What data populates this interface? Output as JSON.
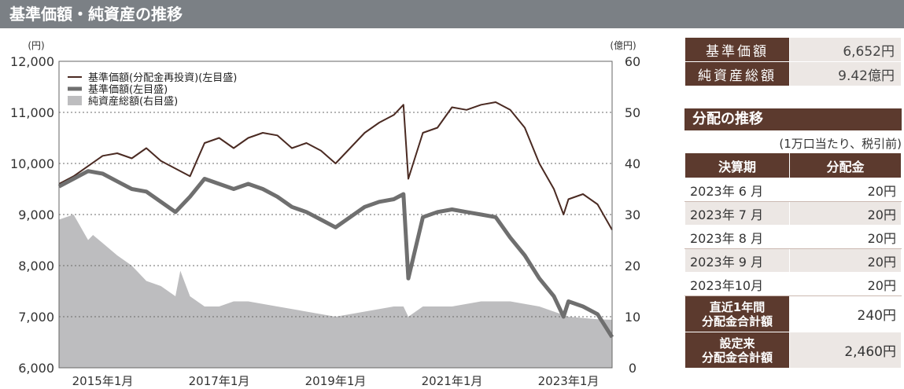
{
  "header": {
    "title": "基準価額・純資産の推移"
  },
  "summary": [
    {
      "label": "基準価額",
      "value": "6,652円"
    },
    {
      "label": "純資産総額",
      "value": "9.42億円"
    }
  ],
  "distribution": {
    "title": "分配の推移",
    "note": "(1万口当たり、税引前)",
    "col_period": "決算期",
    "col_amount": "分配金",
    "rows": [
      {
        "period": "2023年 6 月",
        "amount": "20円"
      },
      {
        "period": "2023年 7 月",
        "amount": "20円"
      },
      {
        "period": "2023年 8 月",
        "amount": "20円"
      },
      {
        "period": "2023年 9 月",
        "amount": "20円"
      },
      {
        "period": "2023年10月",
        "amount": "20円"
      }
    ],
    "recent_total_label": "直近1年間\n分配金合計額",
    "recent_total_value": "240円",
    "since_total_label": "設定来\n分配金合計額",
    "since_total_value": "2,460円"
  },
  "colors": {
    "reinvested_line": "#4a2a22",
    "nav_line": "#6f6f6f",
    "net_assets_area": "#bdbdbf",
    "header_bg": "#7b8085",
    "table_header": "#5c3a2e"
  },
  "chart_data": {
    "type": "line",
    "title": "",
    "left_axis_unit": "(円)",
    "right_axis_unit": "(億円)",
    "y_left_range": [
      6000,
      12000
    ],
    "y_right_range": [
      0,
      60
    ],
    "y_left_ticks": [
      "6,000",
      "7,000",
      "8,000",
      "9,000",
      "10,000",
      "11,000",
      "12,000"
    ],
    "y_right_ticks": [
      "0",
      "10",
      "20",
      "30",
      "40",
      "50",
      "60"
    ],
    "x_range": [
      "2014-04",
      "2023-10"
    ],
    "x_ticks": [
      {
        "date": "2015-01",
        "label": "2015年1月"
      },
      {
        "date": "2017-01",
        "label": "2017年1月"
      },
      {
        "date": "2019-01",
        "label": "2019年1月"
      },
      {
        "date": "2021-01",
        "label": "2021年1月"
      },
      {
        "date": "2023-01",
        "label": "2023年1月"
      }
    ],
    "grid": true,
    "legend_position": "top-left",
    "series": [
      {
        "name": "基準価額(分配金再投資)(左目盛)",
        "axis": "left",
        "style": "line",
        "points": [
          [
            "2014-04",
            9600
          ],
          [
            "2014-07",
            9750
          ],
          [
            "2014-10",
            9950
          ],
          [
            "2015-01",
            10150
          ],
          [
            "2015-04",
            10200
          ],
          [
            "2015-07",
            10100
          ],
          [
            "2015-10",
            10300
          ],
          [
            "2016-01",
            10050
          ],
          [
            "2016-04",
            9900
          ],
          [
            "2016-07",
            9750
          ],
          [
            "2016-10",
            10400
          ],
          [
            "2017-01",
            10500
          ],
          [
            "2017-04",
            10300
          ],
          [
            "2017-07",
            10500
          ],
          [
            "2017-10",
            10600
          ],
          [
            "2018-01",
            10550
          ],
          [
            "2018-04",
            10300
          ],
          [
            "2018-07",
            10400
          ],
          [
            "2018-10",
            10250
          ],
          [
            "2019-01",
            10000
          ],
          [
            "2019-04",
            10300
          ],
          [
            "2019-07",
            10600
          ],
          [
            "2019-10",
            10800
          ],
          [
            "2020-01",
            10950
          ],
          [
            "2020-03",
            11150
          ],
          [
            "2020-04",
            9700
          ],
          [
            "2020-07",
            10600
          ],
          [
            "2020-10",
            10700
          ],
          [
            "2021-01",
            11100
          ],
          [
            "2021-04",
            11050
          ],
          [
            "2021-07",
            11150
          ],
          [
            "2021-10",
            11200
          ],
          [
            "2022-01",
            11050
          ],
          [
            "2022-04",
            10700
          ],
          [
            "2022-07",
            10000
          ],
          [
            "2022-10",
            9500
          ],
          [
            "2022-12",
            9000
          ],
          [
            "2023-01",
            9300
          ],
          [
            "2023-04",
            9400
          ],
          [
            "2023-07",
            9200
          ],
          [
            "2023-10",
            8700
          ]
        ]
      },
      {
        "name": "基準価額(左目盛)",
        "axis": "left",
        "style": "line",
        "points": [
          [
            "2014-04",
            9550
          ],
          [
            "2014-07",
            9700
          ],
          [
            "2014-10",
            9850
          ],
          [
            "2015-01",
            9800
          ],
          [
            "2015-04",
            9650
          ],
          [
            "2015-07",
            9500
          ],
          [
            "2015-10",
            9450
          ],
          [
            "2016-01",
            9250
          ],
          [
            "2016-04",
            9050
          ],
          [
            "2016-07",
            9350
          ],
          [
            "2016-10",
            9700
          ],
          [
            "2017-01",
            9600
          ],
          [
            "2017-04",
            9500
          ],
          [
            "2017-07",
            9600
          ],
          [
            "2017-10",
            9500
          ],
          [
            "2018-01",
            9350
          ],
          [
            "2018-04",
            9150
          ],
          [
            "2018-07",
            9050
          ],
          [
            "2018-10",
            8900
          ],
          [
            "2019-01",
            8750
          ],
          [
            "2019-04",
            8950
          ],
          [
            "2019-07",
            9150
          ],
          [
            "2019-10",
            9250
          ],
          [
            "2020-01",
            9300
          ],
          [
            "2020-03",
            9400
          ],
          [
            "2020-04",
            7750
          ],
          [
            "2020-07",
            8950
          ],
          [
            "2020-10",
            9050
          ],
          [
            "2021-01",
            9100
          ],
          [
            "2021-04",
            9050
          ],
          [
            "2021-07",
            9000
          ],
          [
            "2021-10",
            8950
          ],
          [
            "2022-01",
            8550
          ],
          [
            "2022-04",
            8200
          ],
          [
            "2022-07",
            7750
          ],
          [
            "2022-10",
            7400
          ],
          [
            "2022-12",
            7000
          ],
          [
            "2023-01",
            7300
          ],
          [
            "2023-04",
            7200
          ],
          [
            "2023-07",
            7050
          ],
          [
            "2023-10",
            6600
          ]
        ]
      },
      {
        "name": "純資産総額(右目盛)",
        "axis": "right",
        "style": "area",
        "points": [
          [
            "2014-04",
            29
          ],
          [
            "2014-07",
            30
          ],
          [
            "2014-10",
            25
          ],
          [
            "2014-11",
            26
          ],
          [
            "2015-04",
            22
          ],
          [
            "2015-07",
            20
          ],
          [
            "2015-10",
            17
          ],
          [
            "2016-01",
            16
          ],
          [
            "2016-04",
            14
          ],
          [
            "2016-05",
            19
          ],
          [
            "2016-07",
            14
          ],
          [
            "2016-10",
            12
          ],
          [
            "2017-01",
            12
          ],
          [
            "2017-04",
            13
          ],
          [
            "2017-07",
            13
          ],
          [
            "2018-01",
            12
          ],
          [
            "2018-07",
            11
          ],
          [
            "2019-01",
            10
          ],
          [
            "2019-07",
            11
          ],
          [
            "2020-01",
            12
          ],
          [
            "2020-03",
            12
          ],
          [
            "2020-04",
            10
          ],
          [
            "2020-07",
            12
          ],
          [
            "2021-01",
            12
          ],
          [
            "2021-07",
            13
          ],
          [
            "2022-01",
            13
          ],
          [
            "2022-07",
            12
          ],
          [
            "2023-01",
            10
          ],
          [
            "2023-07",
            9.5
          ],
          [
            "2023-10",
            9.4
          ]
        ]
      }
    ]
  }
}
